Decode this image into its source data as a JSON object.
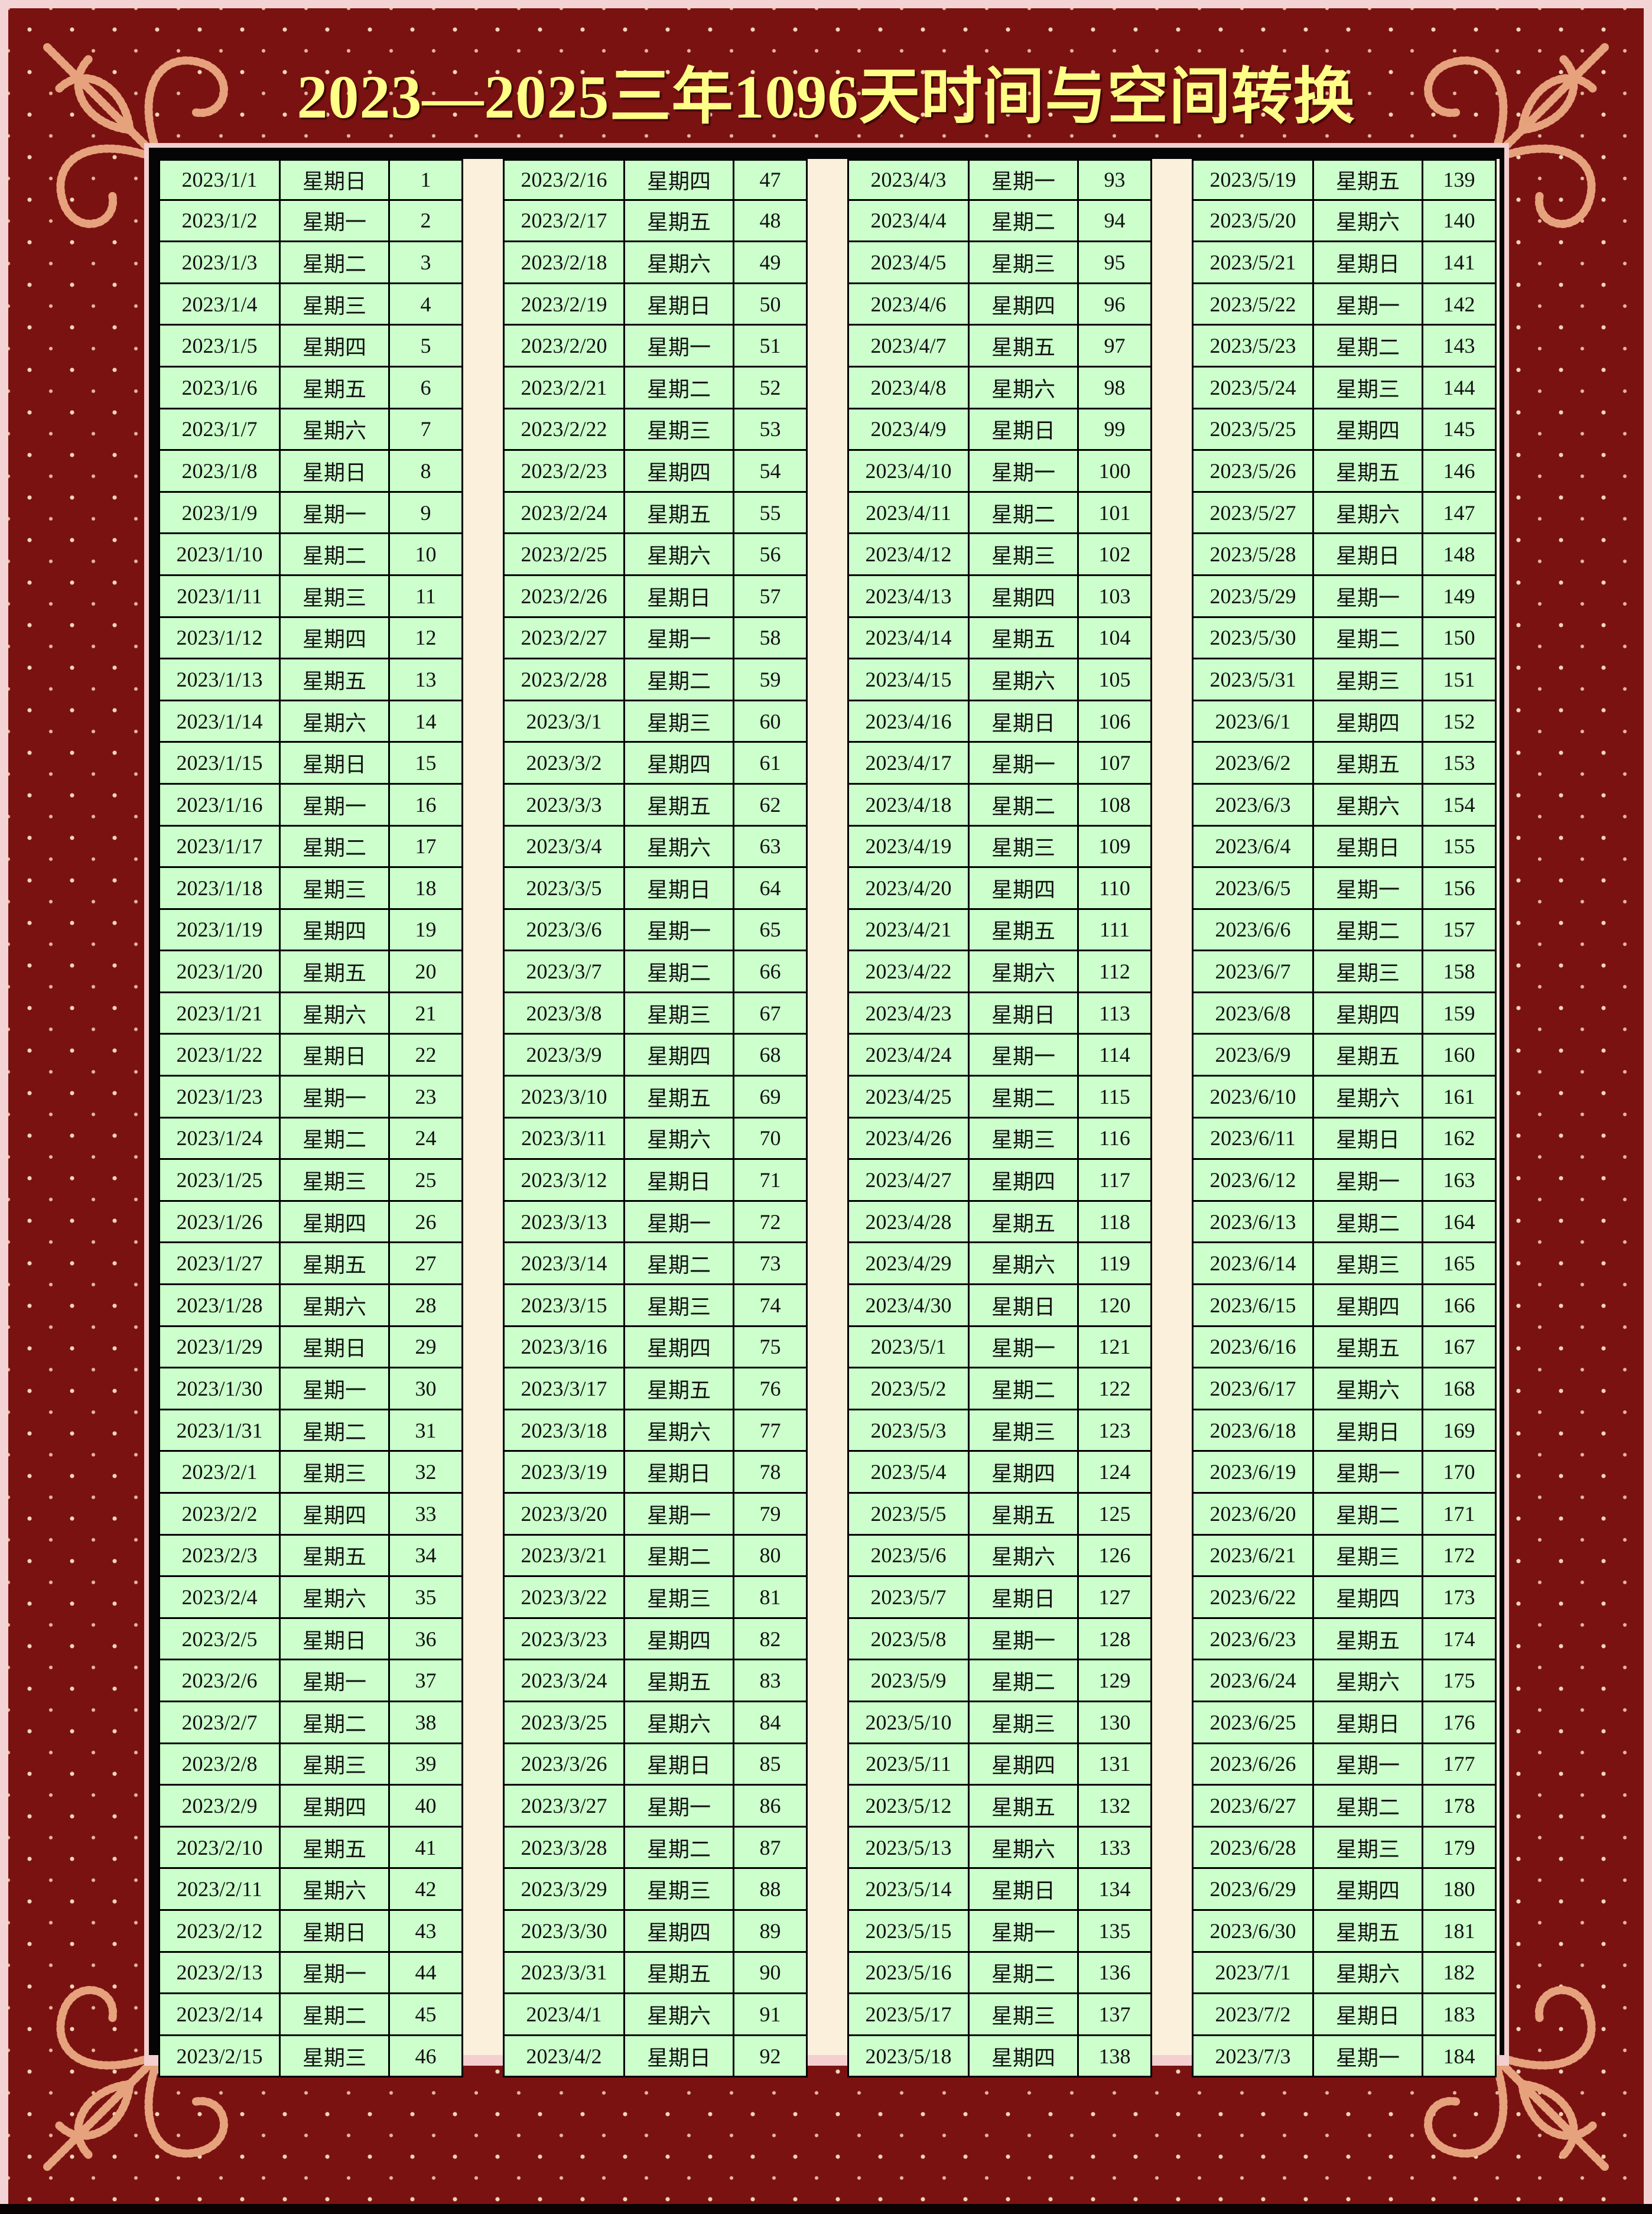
{
  "title": "2023—2025三年1096天时间与空间转换",
  "colors": {
    "frame": "#7a1212",
    "cell": "#ccffcc",
    "title": "#ffff88",
    "gap": "#fbf0dc"
  },
  "columns": [
    {
      "rows": [
        [
          "2023/1/1",
          "星期日",
          "1"
        ],
        [
          "2023/1/2",
          "星期一",
          "2"
        ],
        [
          "2023/1/3",
          "星期二",
          "3"
        ],
        [
          "2023/1/4",
          "星期三",
          "4"
        ],
        [
          "2023/1/5",
          "星期四",
          "5"
        ],
        [
          "2023/1/6",
          "星期五",
          "6"
        ],
        [
          "2023/1/7",
          "星期六",
          "7"
        ],
        [
          "2023/1/8",
          "星期日",
          "8"
        ],
        [
          "2023/1/9",
          "星期一",
          "9"
        ],
        [
          "2023/1/10",
          "星期二",
          "10"
        ],
        [
          "2023/1/11",
          "星期三",
          "11"
        ],
        [
          "2023/1/12",
          "星期四",
          "12"
        ],
        [
          "2023/1/13",
          "星期五",
          "13"
        ],
        [
          "2023/1/14",
          "星期六",
          "14"
        ],
        [
          "2023/1/15",
          "星期日",
          "15"
        ],
        [
          "2023/1/16",
          "星期一",
          "16"
        ],
        [
          "2023/1/17",
          "星期二",
          "17"
        ],
        [
          "2023/1/18",
          "星期三",
          "18"
        ],
        [
          "2023/1/19",
          "星期四",
          "19"
        ],
        [
          "2023/1/20",
          "星期五",
          "20"
        ],
        [
          "2023/1/21",
          "星期六",
          "21"
        ],
        [
          "2023/1/22",
          "星期日",
          "22"
        ],
        [
          "2023/1/23",
          "星期一",
          "23"
        ],
        [
          "2023/1/24",
          "星期二",
          "24"
        ],
        [
          "2023/1/25",
          "星期三",
          "25"
        ],
        [
          "2023/1/26",
          "星期四",
          "26"
        ],
        [
          "2023/1/27",
          "星期五",
          "27"
        ],
        [
          "2023/1/28",
          "星期六",
          "28"
        ],
        [
          "2023/1/29",
          "星期日",
          "29"
        ],
        [
          "2023/1/30",
          "星期一",
          "30"
        ],
        [
          "2023/1/31",
          "星期二",
          "31"
        ],
        [
          "2023/2/1",
          "星期三",
          "32"
        ],
        [
          "2023/2/2",
          "星期四",
          "33"
        ],
        [
          "2023/2/3",
          "星期五",
          "34"
        ],
        [
          "2023/2/4",
          "星期六",
          "35"
        ],
        [
          "2023/2/5",
          "星期日",
          "36"
        ],
        [
          "2023/2/6",
          "星期一",
          "37"
        ],
        [
          "2023/2/7",
          "星期二",
          "38"
        ],
        [
          "2023/2/8",
          "星期三",
          "39"
        ],
        [
          "2023/2/9",
          "星期四",
          "40"
        ],
        [
          "2023/2/10",
          "星期五",
          "41"
        ],
        [
          "2023/2/11",
          "星期六",
          "42"
        ],
        [
          "2023/2/12",
          "星期日",
          "43"
        ],
        [
          "2023/2/13",
          "星期一",
          "44"
        ],
        [
          "2023/2/14",
          "星期二",
          "45"
        ],
        [
          "2023/2/15",
          "星期三",
          "46"
        ]
      ]
    },
    {
      "rows": [
        [
          "2023/2/16",
          "星期四",
          "47"
        ],
        [
          "2023/2/17",
          "星期五",
          "48"
        ],
        [
          "2023/2/18",
          "星期六",
          "49"
        ],
        [
          "2023/2/19",
          "星期日",
          "50"
        ],
        [
          "2023/2/20",
          "星期一",
          "51"
        ],
        [
          "2023/2/21",
          "星期二",
          "52"
        ],
        [
          "2023/2/22",
          "星期三",
          "53"
        ],
        [
          "2023/2/23",
          "星期四",
          "54"
        ],
        [
          "2023/2/24",
          "星期五",
          "55"
        ],
        [
          "2023/2/25",
          "星期六",
          "56"
        ],
        [
          "2023/2/26",
          "星期日",
          "57"
        ],
        [
          "2023/2/27",
          "星期一",
          "58"
        ],
        [
          "2023/2/28",
          "星期二",
          "59"
        ],
        [
          "2023/3/1",
          "星期三",
          "60"
        ],
        [
          "2023/3/2",
          "星期四",
          "61"
        ],
        [
          "2023/3/3",
          "星期五",
          "62"
        ],
        [
          "2023/3/4",
          "星期六",
          "63"
        ],
        [
          "2023/3/5",
          "星期日",
          "64"
        ],
        [
          "2023/3/6",
          "星期一",
          "65"
        ],
        [
          "2023/3/7",
          "星期二",
          "66"
        ],
        [
          "2023/3/8",
          "星期三",
          "67"
        ],
        [
          "2023/3/9",
          "星期四",
          "68"
        ],
        [
          "2023/3/10",
          "星期五",
          "69"
        ],
        [
          "2023/3/11",
          "星期六",
          "70"
        ],
        [
          "2023/3/12",
          "星期日",
          "71"
        ],
        [
          "2023/3/13",
          "星期一",
          "72"
        ],
        [
          "2023/3/14",
          "星期二",
          "73"
        ],
        [
          "2023/3/15",
          "星期三",
          "74"
        ],
        [
          "2023/3/16",
          "星期四",
          "75"
        ],
        [
          "2023/3/17",
          "星期五",
          "76"
        ],
        [
          "2023/3/18",
          "星期六",
          "77"
        ],
        [
          "2023/3/19",
          "星期日",
          "78"
        ],
        [
          "2023/3/20",
          "星期一",
          "79"
        ],
        [
          "2023/3/21",
          "星期二",
          "80"
        ],
        [
          "2023/3/22",
          "星期三",
          "81"
        ],
        [
          "2023/3/23",
          "星期四",
          "82"
        ],
        [
          "2023/3/24",
          "星期五",
          "83"
        ],
        [
          "2023/3/25",
          "星期六",
          "84"
        ],
        [
          "2023/3/26",
          "星期日",
          "85"
        ],
        [
          "2023/3/27",
          "星期一",
          "86"
        ],
        [
          "2023/3/28",
          "星期二",
          "87"
        ],
        [
          "2023/3/29",
          "星期三",
          "88"
        ],
        [
          "2023/3/30",
          "星期四",
          "89"
        ],
        [
          "2023/3/31",
          "星期五",
          "90"
        ],
        [
          "2023/4/1",
          "星期六",
          "91"
        ],
        [
          "2023/4/2",
          "星期日",
          "92"
        ]
      ]
    },
    {
      "rows": [
        [
          "2023/4/3",
          "星期一",
          "93"
        ],
        [
          "2023/4/4",
          "星期二",
          "94"
        ],
        [
          "2023/4/5",
          "星期三",
          "95"
        ],
        [
          "2023/4/6",
          "星期四",
          "96"
        ],
        [
          "2023/4/7",
          "星期五",
          "97"
        ],
        [
          "2023/4/8",
          "星期六",
          "98"
        ],
        [
          "2023/4/9",
          "星期日",
          "99"
        ],
        [
          "2023/4/10",
          "星期一",
          "100"
        ],
        [
          "2023/4/11",
          "星期二",
          "101"
        ],
        [
          "2023/4/12",
          "星期三",
          "102"
        ],
        [
          "2023/4/13",
          "星期四",
          "103"
        ],
        [
          "2023/4/14",
          "星期五",
          "104"
        ],
        [
          "2023/4/15",
          "星期六",
          "105"
        ],
        [
          "2023/4/16",
          "星期日",
          "106"
        ],
        [
          "2023/4/17",
          "星期一",
          "107"
        ],
        [
          "2023/4/18",
          "星期二",
          "108"
        ],
        [
          "2023/4/19",
          "星期三",
          "109"
        ],
        [
          "2023/4/20",
          "星期四",
          "110"
        ],
        [
          "2023/4/21",
          "星期五",
          "111"
        ],
        [
          "2023/4/22",
          "星期六",
          "112"
        ],
        [
          "2023/4/23",
          "星期日",
          "113"
        ],
        [
          "2023/4/24",
          "星期一",
          "114"
        ],
        [
          "2023/4/25",
          "星期二",
          "115"
        ],
        [
          "2023/4/26",
          "星期三",
          "116"
        ],
        [
          "2023/4/27",
          "星期四",
          "117"
        ],
        [
          "2023/4/28",
          "星期五",
          "118"
        ],
        [
          "2023/4/29",
          "星期六",
          "119"
        ],
        [
          "2023/4/30",
          "星期日",
          "120"
        ],
        [
          "2023/5/1",
          "星期一",
          "121"
        ],
        [
          "2023/5/2",
          "星期二",
          "122"
        ],
        [
          "2023/5/3",
          "星期三",
          "123"
        ],
        [
          "2023/5/4",
          "星期四",
          "124"
        ],
        [
          "2023/5/5",
          "星期五",
          "125"
        ],
        [
          "2023/5/6",
          "星期六",
          "126"
        ],
        [
          "2023/5/7",
          "星期日",
          "127"
        ],
        [
          "2023/5/8",
          "星期一",
          "128"
        ],
        [
          "2023/5/9",
          "星期二",
          "129"
        ],
        [
          "2023/5/10",
          "星期三",
          "130"
        ],
        [
          "2023/5/11",
          "星期四",
          "131"
        ],
        [
          "2023/5/12",
          "星期五",
          "132"
        ],
        [
          "2023/5/13",
          "星期六",
          "133"
        ],
        [
          "2023/5/14",
          "星期日",
          "134"
        ],
        [
          "2023/5/15",
          "星期一",
          "135"
        ],
        [
          "2023/5/16",
          "星期二",
          "136"
        ],
        [
          "2023/5/17",
          "星期三",
          "137"
        ],
        [
          "2023/5/18",
          "星期四",
          "138"
        ]
      ]
    },
    {
      "rows": [
        [
          "2023/5/19",
          "星期五",
          "139"
        ],
        [
          "2023/5/20",
          "星期六",
          "140"
        ],
        [
          "2023/5/21",
          "星期日",
          "141"
        ],
        [
          "2023/5/22",
          "星期一",
          "142"
        ],
        [
          "2023/5/23",
          "星期二",
          "143"
        ],
        [
          "2023/5/24",
          "星期三",
          "144"
        ],
        [
          "2023/5/25",
          "星期四",
          "145"
        ],
        [
          "2023/5/26",
          "星期五",
          "146"
        ],
        [
          "2023/5/27",
          "星期六",
          "147"
        ],
        [
          "2023/5/28",
          "星期日",
          "148"
        ],
        [
          "2023/5/29",
          "星期一",
          "149"
        ],
        [
          "2023/5/30",
          "星期二",
          "150"
        ],
        [
          "2023/5/31",
          "星期三",
          "151"
        ],
        [
          "2023/6/1",
          "星期四",
          "152"
        ],
        [
          "2023/6/2",
          "星期五",
          "153"
        ],
        [
          "2023/6/3",
          "星期六",
          "154"
        ],
        [
          "2023/6/4",
          "星期日",
          "155"
        ],
        [
          "2023/6/5",
          "星期一",
          "156"
        ],
        [
          "2023/6/6",
          "星期二",
          "157"
        ],
        [
          "2023/6/7",
          "星期三",
          "158"
        ],
        [
          "2023/6/8",
          "星期四",
          "159"
        ],
        [
          "2023/6/9",
          "星期五",
          "160"
        ],
        [
          "2023/6/10",
          "星期六",
          "161"
        ],
        [
          "2023/6/11",
          "星期日",
          "162"
        ],
        [
          "2023/6/12",
          "星期一",
          "163"
        ],
        [
          "2023/6/13",
          "星期二",
          "164"
        ],
        [
          "2023/6/14",
          "星期三",
          "165"
        ],
        [
          "2023/6/15",
          "星期四",
          "166"
        ],
        [
          "2023/6/16",
          "星期五",
          "167"
        ],
        [
          "2023/6/17",
          "星期六",
          "168"
        ],
        [
          "2023/6/18",
          "星期日",
          "169"
        ],
        [
          "2023/6/19",
          "星期一",
          "170"
        ],
        [
          "2023/6/20",
          "星期二",
          "171"
        ],
        [
          "2023/6/21",
          "星期三",
          "172"
        ],
        [
          "2023/6/22",
          "星期四",
          "173"
        ],
        [
          "2023/6/23",
          "星期五",
          "174"
        ],
        [
          "2023/6/24",
          "星期六",
          "175"
        ],
        [
          "2023/6/25",
          "星期日",
          "176"
        ],
        [
          "2023/6/26",
          "星期一",
          "177"
        ],
        [
          "2023/6/27",
          "星期二",
          "178"
        ],
        [
          "2023/6/28",
          "星期三",
          "179"
        ],
        [
          "2023/6/29",
          "星期四",
          "180"
        ],
        [
          "2023/6/30",
          "星期五",
          "181"
        ],
        [
          "2023/7/1",
          "星期六",
          "182"
        ],
        [
          "2023/7/2",
          "星期日",
          "183"
        ],
        [
          "2023/7/3",
          "星期一",
          "184"
        ]
      ]
    }
  ]
}
